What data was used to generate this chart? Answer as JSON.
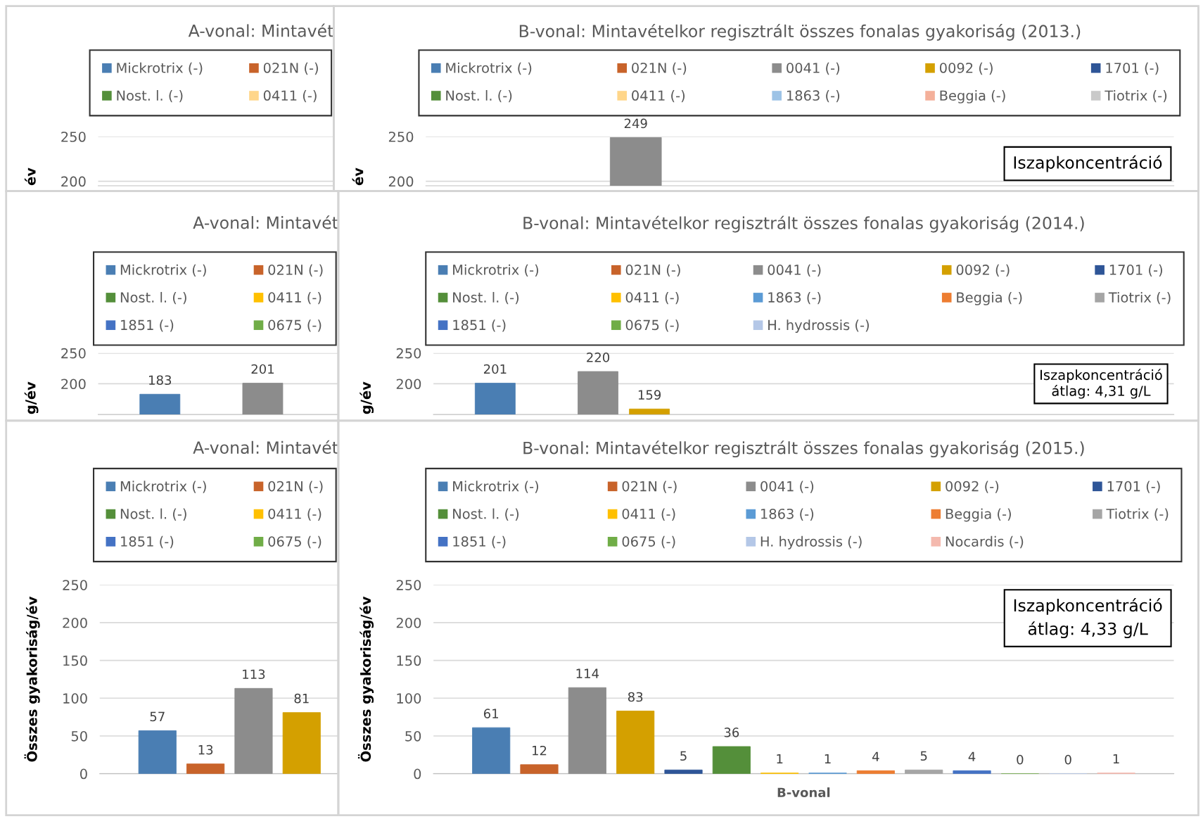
{
  "chart_data": [
    {
      "type": "bar",
      "title": "A-vonal: Mintavét",
      "ylabel": "év",
      "categories": [
        null
      ],
      "tick_labels": "y",
      "ylim": [
        195,
        250
      ],
      "yticks": [
        200,
        250
      ],
      "grid": "y",
      "legend": "top",
      "data_labels": true,
      "series": [
        {
          "name": "Mickrotrix (-)",
          "color": "#4a7eb3",
          "values": [
            null
          ]
        },
        {
          "name": "021N (-)",
          "color": "#c8632a",
          "values": [
            null
          ]
        },
        {
          "name": "Nost. l. (-)",
          "color": "#548f3a",
          "values": [
            null
          ]
        },
        {
          "name": "0411 (-)",
          "color": "#ffd68a",
          "values": [
            null
          ]
        }
      ]
    },
    {
      "type": "bar",
      "title": "B-vonal: Mintavételkor regisztrált összes fonalas gyakoriság (2013.)",
      "ylabel": "év",
      "categories": [
        null
      ],
      "tick_labels": "y",
      "ylim": [
        195,
        250
      ],
      "yticks": [
        200,
        250
      ],
      "grid": "y",
      "legend": "top",
      "data_labels": true,
      "annotations": [
        "Iszapkoncentráció"
      ],
      "series": [
        {
          "name": "Mickrotrix (-)",
          "color": "#4a7eb3",
          "values": [
            null
          ]
        },
        {
          "name": "021N (-)",
          "color": "#c8632a",
          "values": [
            null
          ]
        },
        {
          "name": "0041 (-)",
          "color": "#8c8c8c",
          "values": [
            249
          ]
        },
        {
          "name": "0092 (-)",
          "color": "#d4a000",
          "values": [
            null
          ]
        },
        {
          "name": "1701 (-)",
          "color": "#2e5597",
          "values": [
            null
          ]
        },
        {
          "name": "Nost. l. (-)",
          "color": "#548f3a",
          "values": [
            null
          ]
        },
        {
          "name": "0411 (-)",
          "color": "#ffd68a",
          "values": [
            null
          ]
        },
        {
          "name": "1863 (-)",
          "color": "#9dc3e6",
          "values": [
            null
          ]
        },
        {
          "name": "Beggia (-)",
          "color": "#f4b09a",
          "values": [
            null
          ]
        },
        {
          "name": "Tiotrix (-)",
          "color": "#c9c9c9",
          "values": [
            null
          ]
        }
      ]
    },
    {
      "type": "bar",
      "title": "A-vonal: Mintavét",
      "ylabel": "g/év",
      "categories": [
        null
      ],
      "tick_labels": "y",
      "ylim": [
        150,
        250
      ],
      "yticks": [
        200,
        250
      ],
      "grid": "y",
      "legend": "top",
      "data_labels": true,
      "series": [
        {
          "name": "Mickrotrix (-)",
          "color": "#4a7eb3",
          "values": [
            183
          ]
        },
        {
          "name": "021N (-)",
          "color": "#c8632a",
          "values": [
            null
          ]
        },
        {
          "color": "#8c8c8c",
          "values": [
            201
          ]
        },
        {
          "name": "Nost. l. (-)",
          "color": "#548f3a",
          "values": [
            null
          ]
        },
        {
          "name": "0411 (-)",
          "color": "#ffc000",
          "values": [
            null
          ]
        },
        {
          "name": "1851 (-)",
          "color": "#4472c4",
          "values": [
            null
          ]
        },
        {
          "name": "0675 (-)",
          "color": "#70ad47",
          "values": [
            null
          ]
        }
      ]
    },
    {
      "type": "bar",
      "title": "B-vonal: Mintavételkor regisztrált összes fonalas gyakoriság (2014.)",
      "ylabel": "g/év",
      "categories": [
        null
      ],
      "tick_labels": "y",
      "ylim": [
        150,
        250
      ],
      "yticks": [
        200,
        250
      ],
      "grid": "y",
      "legend": "top",
      "data_labels": true,
      "annotations": [
        "Iszapkoncentráció\nátlag: 4,31 g/L"
      ],
      "series": [
        {
          "name": "Mickrotrix (-)",
          "color": "#4a7eb3",
          "values": [
            201
          ]
        },
        {
          "name": "021N (-)",
          "color": "#c8632a",
          "values": [
            null
          ]
        },
        {
          "name": "0041 (-)",
          "color": "#8c8c8c",
          "values": [
            220
          ]
        },
        {
          "name": "0092 (-)",
          "color": "#d4a000",
          "values": [
            159
          ]
        },
        {
          "name": "1701 (-)",
          "color": "#2e5597",
          "values": [
            null
          ]
        },
        {
          "name": "Nost. l. (-)",
          "color": "#548f3a",
          "values": [
            null
          ]
        },
        {
          "name": "0411 (-)",
          "color": "#ffc000",
          "values": [
            null
          ]
        },
        {
          "name": "1863 (-)",
          "color": "#5b9bd5",
          "values": [
            null
          ]
        },
        {
          "name": "Beggia (-)",
          "color": "#ed7d31",
          "values": [
            null
          ]
        },
        {
          "name": "Tiotrix (-)",
          "color": "#a5a5a5",
          "values": [
            null
          ]
        },
        {
          "name": "1851 (-)",
          "color": "#4472c4",
          "values": [
            null
          ]
        },
        {
          "name": "0675 (-)",
          "color": "#70ad47",
          "values": [
            null
          ]
        },
        {
          "name": "H. hydrossis (-)",
          "color": "#b4c7e7",
          "values": [
            null
          ]
        }
      ]
    },
    {
      "type": "bar",
      "title": "A-vonal: Mintavét",
      "ylabel": "Összes gyakoriság/év",
      "categories": [
        null
      ],
      "tick_labels": "y",
      "ylim": [
        0,
        250
      ],
      "yticks": [
        0,
        50,
        100,
        150,
        200,
        250
      ],
      "grid": "y",
      "legend": "top",
      "data_labels": true,
      "series": [
        {
          "name": "Mickrotrix (-)",
          "color": "#4a7eb3",
          "values": [
            57
          ]
        },
        {
          "name": "021N (-)",
          "color": "#c8632a",
          "values": [
            13
          ]
        },
        {
          "color": "#8c8c8c",
          "values": [
            113
          ]
        },
        {
          "color": "#d4a000",
          "values": [
            81
          ]
        },
        {
          "name": "Nost. l. (-)",
          "color": "#548f3a",
          "values": [
            null
          ]
        },
        {
          "name": "0411 (-)",
          "color": "#ffc000",
          "values": [
            null
          ]
        },
        {
          "name": "1851 (-)",
          "color": "#4472c4",
          "values": [
            null
          ]
        },
        {
          "name": "0675 (-)",
          "color": "#70ad47",
          "values": [
            null
          ]
        }
      ]
    },
    {
      "type": "bar",
      "title": "B-vonal: Mintavételkor regisztrált összes fonalas gyakoriság (2015.)",
      "ylabel": "Összes gyakoriság/év",
      "xlabel": "B-vonal",
      "categories": [
        null
      ],
      "tick_labels": "y",
      "ylim": [
        0,
        250
      ],
      "yticks": [
        0,
        50,
        100,
        150,
        200,
        250
      ],
      "grid": "y",
      "legend": "top",
      "data_labels": true,
      "annotations": [
        "Iszapkoncentráció\nátlag: 4,33 g/L"
      ],
      "series": [
        {
          "name": "Mickrotrix (-)",
          "color": "#4a7eb3",
          "values": [
            61
          ]
        },
        {
          "name": "021N (-)",
          "color": "#c8632a",
          "values": [
            12
          ]
        },
        {
          "name": "0041 (-)",
          "color": "#8c8c8c",
          "values": [
            114
          ]
        },
        {
          "name": "0092 (-)",
          "color": "#d4a000",
          "values": [
            83
          ]
        },
        {
          "name": "1701 (-)",
          "color": "#2e5597",
          "values": [
            5
          ]
        },
        {
          "name": "Nost. l. (-)",
          "color": "#548f3a",
          "values": [
            36
          ]
        },
        {
          "name": "0411 (-)",
          "color": "#ffc000",
          "values": [
            1
          ]
        },
        {
          "name": "1863 (-)",
          "color": "#5b9bd5",
          "values": [
            1
          ]
        },
        {
          "name": "Beggia (-)",
          "color": "#ed7d31",
          "values": [
            4
          ]
        },
        {
          "name": "Tiotrix (-)",
          "color": "#a5a5a5",
          "values": [
            5
          ]
        },
        {
          "name": "1851 (-)",
          "color": "#4472c4",
          "values": [
            4
          ]
        },
        {
          "name": "0675 (-)",
          "color": "#70ad47",
          "values": [
            0
          ]
        },
        {
          "name": "H. hydrossis (-)",
          "color": "#b4c7e7",
          "values": [
            0
          ]
        },
        {
          "name": "Nocardis (-)",
          "color": "#f4b9ae",
          "values": [
            1
          ]
        }
      ]
    }
  ]
}
